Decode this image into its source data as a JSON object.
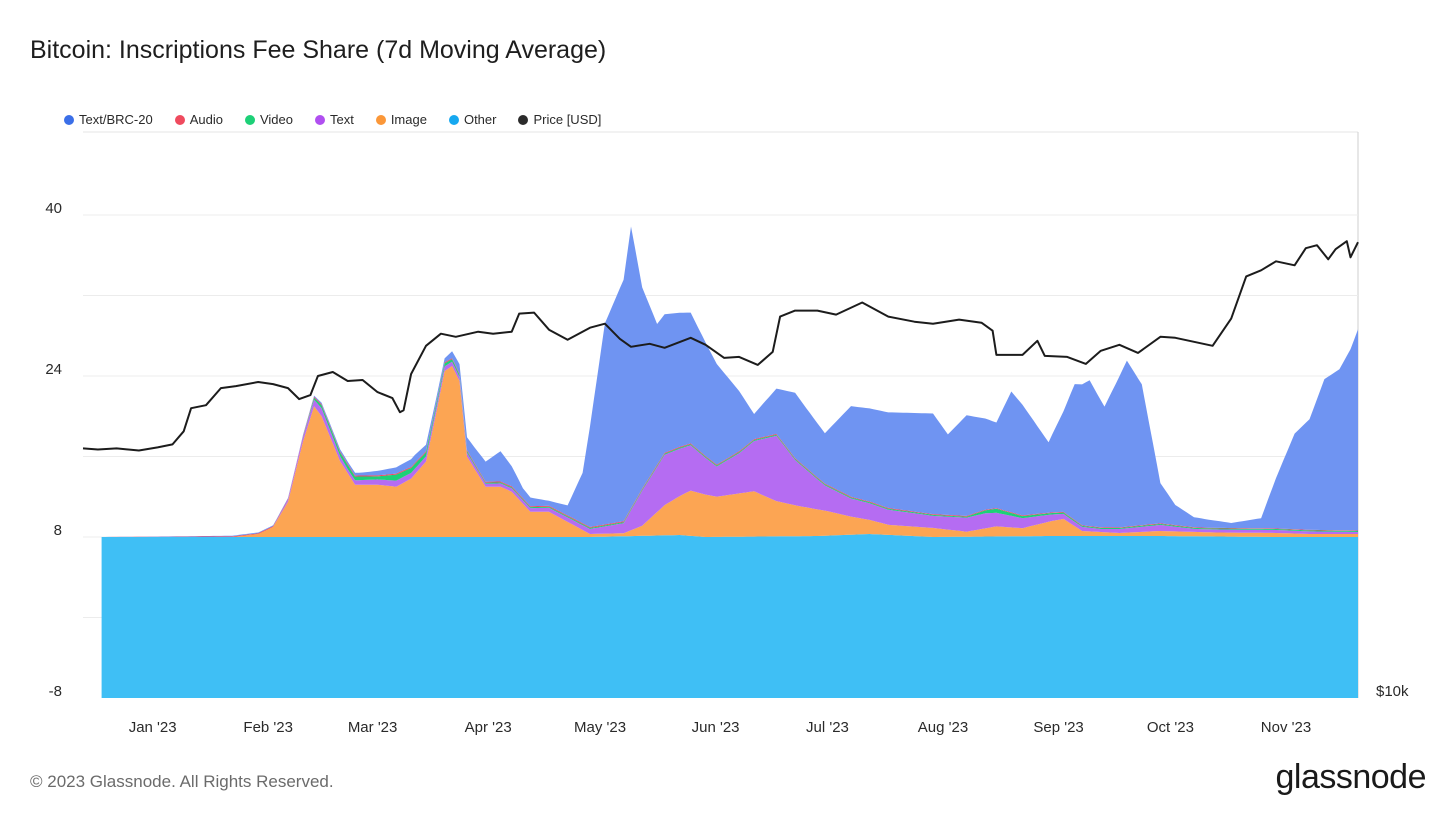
{
  "chart_data": {
    "type": "area",
    "title": "Bitcoin: Inscriptions Fee Share (7d Moving Average)",
    "y_ticks": [
      "40",
      "24",
      "8",
      "-8"
    ],
    "y_right_label": "$10k",
    "ylim": [
      -8,
      48
    ],
    "x_start": "2022-12-16",
    "x_end": "2023-11-23",
    "x_ticks": [
      {
        "label": "Jan '23",
        "date": "2023-01-01"
      },
      {
        "label": "Feb '23",
        "date": "2023-02-01"
      },
      {
        "label": "Mar '23",
        "date": "2023-03-01"
      },
      {
        "label": "Apr '23",
        "date": "2023-04-01"
      },
      {
        "label": "May '23",
        "date": "2023-05-01"
      },
      {
        "label": "Jun '23",
        "date": "2023-06-01"
      },
      {
        "label": "Jul '23",
        "date": "2023-07-01"
      },
      {
        "label": "Aug '23",
        "date": "2023-08-01"
      },
      {
        "label": "Sep '23",
        "date": "2023-09-01"
      },
      {
        "label": "Oct '23",
        "date": "2023-10-01"
      },
      {
        "label": "Nov '23",
        "date": "2023-11-01"
      }
    ],
    "stacked_series": [
      {
        "name": "Other",
        "color": "#3fbff5",
        "points": [
          [
            "2022-12-21",
            8.0
          ],
          [
            "2023-02-01",
            8.0
          ],
          [
            "2023-03-01",
            8.0
          ],
          [
            "2023-04-01",
            8.0
          ],
          [
            "2023-05-01",
            8.0
          ],
          [
            "2023-05-25",
            8.2
          ],
          [
            "2023-06-01",
            8.0
          ],
          [
            "2023-07-01",
            8.1
          ],
          [
            "2023-07-15",
            8.3
          ],
          [
            "2023-08-01",
            8.0
          ],
          [
            "2023-09-01",
            8.1
          ],
          [
            "2023-10-01",
            8.1
          ],
          [
            "2023-11-01",
            8.0
          ],
          [
            "2023-11-23",
            8.0
          ]
        ]
      },
      {
        "name": "Image",
        "color": "#fca553",
        "points": [
          [
            "2022-12-21",
            0
          ],
          [
            "2023-01-25",
            0
          ],
          [
            "2023-02-01",
            0.3
          ],
          [
            "2023-02-05",
            1.0
          ],
          [
            "2023-02-09",
            3.5
          ],
          [
            "2023-02-13",
            9.5
          ],
          [
            "2023-02-16",
            13.0
          ],
          [
            "2023-02-18",
            12.0
          ],
          [
            "2023-02-23",
            7.5
          ],
          [
            "2023-02-27",
            5.2
          ],
          [
            "2023-03-05",
            5.2
          ],
          [
            "2023-03-10",
            5.0
          ],
          [
            "2023-03-14",
            5.8
          ],
          [
            "2023-03-18",
            7.5
          ],
          [
            "2023-03-20",
            11.0
          ],
          [
            "2023-03-23",
            16.5
          ],
          [
            "2023-03-25",
            17.0
          ],
          [
            "2023-03-27",
            15.5
          ],
          [
            "2023-03-29",
            8.0
          ],
          [
            "2023-04-03",
            5.0
          ],
          [
            "2023-04-07",
            5.0
          ],
          [
            "2023-04-10",
            4.5
          ],
          [
            "2023-04-15",
            2.5
          ],
          [
            "2023-04-20",
            2.5
          ],
          [
            "2023-04-25",
            1.5
          ],
          [
            "2023-05-01",
            0.3
          ],
          [
            "2023-05-10",
            0.3
          ],
          [
            "2023-05-15",
            1.0
          ],
          [
            "2023-05-21",
            3.0
          ],
          [
            "2023-05-28",
            4.5
          ],
          [
            "2023-06-04",
            4.0
          ],
          [
            "2023-06-10",
            4.3
          ],
          [
            "2023-06-14",
            4.5
          ],
          [
            "2023-06-20",
            3.5
          ],
          [
            "2023-06-26",
            3.0
          ],
          [
            "2023-07-03",
            2.5
          ],
          [
            "2023-07-10",
            1.8
          ],
          [
            "2023-07-20",
            1.0
          ],
          [
            "2023-08-01",
            0.9
          ],
          [
            "2023-08-10",
            0.5
          ],
          [
            "2023-08-18",
            1.0
          ],
          [
            "2023-08-25",
            0.8
          ],
          [
            "2023-09-02",
            1.5
          ],
          [
            "2023-09-05",
            1.7
          ],
          [
            "2023-09-10",
            0.5
          ],
          [
            "2023-09-20",
            0.3
          ],
          [
            "2023-10-01",
            0.5
          ],
          [
            "2023-10-15",
            0.4
          ],
          [
            "2023-11-01",
            0.4
          ],
          [
            "2023-11-10",
            0.3
          ],
          [
            "2023-11-23",
            0.3
          ]
        ]
      },
      {
        "name": "Text",
        "color": "#b56cf2",
        "points": [
          [
            "2022-12-21",
            0
          ],
          [
            "2023-02-05",
            0
          ],
          [
            "2023-02-13",
            0.4
          ],
          [
            "2023-02-18",
            0.8
          ],
          [
            "2023-02-25",
            0.4
          ],
          [
            "2023-03-10",
            0.6
          ],
          [
            "2023-03-20",
            0.5
          ],
          [
            "2023-04-03",
            0.3
          ],
          [
            "2023-04-20",
            0.4
          ],
          [
            "2023-05-01",
            0.5
          ],
          [
            "2023-05-10",
            1.0
          ],
          [
            "2023-05-15",
            3.5
          ],
          [
            "2023-05-21",
            5.0
          ],
          [
            "2023-05-28",
            4.5
          ],
          [
            "2023-06-04",
            3.0
          ],
          [
            "2023-06-10",
            4.0
          ],
          [
            "2023-06-20",
            6.5
          ],
          [
            "2023-06-25",
            4.5
          ],
          [
            "2023-07-03",
            2.5
          ],
          [
            "2023-07-10",
            1.8
          ],
          [
            "2023-07-20",
            1.5
          ],
          [
            "2023-08-01",
            1.2
          ],
          [
            "2023-08-15",
            1.5
          ],
          [
            "2023-08-25",
            1.0
          ],
          [
            "2023-09-05",
            0.5
          ],
          [
            "2023-09-15",
            0.3
          ],
          [
            "2023-10-01",
            0.6
          ],
          [
            "2023-10-10",
            0.3
          ],
          [
            "2023-11-01",
            0.3
          ],
          [
            "2023-11-23",
            0.2
          ]
        ]
      },
      {
        "name": "Video",
        "color": "#1dd077",
        "points": [
          [
            "2022-12-21",
            0
          ],
          [
            "2023-02-12",
            0
          ],
          [
            "2023-02-18",
            0.3
          ],
          [
            "2023-02-25",
            0.4
          ],
          [
            "2023-03-05",
            0.3
          ],
          [
            "2023-03-10",
            0.6
          ],
          [
            "2023-03-18",
            0.4
          ],
          [
            "2023-04-01",
            0.1
          ],
          [
            "2023-08-10",
            0.1
          ],
          [
            "2023-08-18",
            0.4
          ],
          [
            "2023-08-25",
            0.2
          ],
          [
            "2023-09-10",
            0.1
          ],
          [
            "2023-11-23",
            0.1
          ]
        ]
      },
      {
        "name": "Audio",
        "color": "#ef4a5e",
        "points": [
          [
            "2022-12-21",
            0
          ],
          [
            "2023-02-15",
            0.1
          ],
          [
            "2023-03-01",
            0.1
          ],
          [
            "2023-03-20",
            0.1
          ],
          [
            "2023-11-23",
            0.05
          ]
        ]
      },
      {
        "name": "Text/BRC-20",
        "color": "#6f94f2",
        "points": [
          [
            "2022-12-21",
            0
          ],
          [
            "2023-02-15",
            0.1
          ],
          [
            "2023-03-01",
            0.3
          ],
          [
            "2023-03-15",
            0.8
          ],
          [
            "2023-03-23",
            0.4
          ],
          [
            "2023-04-03",
            2.0
          ],
          [
            "2023-04-07",
            3.0
          ],
          [
            "2023-04-13",
            1.0
          ],
          [
            "2023-04-20",
            0.5
          ],
          [
            "2023-04-25",
            1.0
          ],
          [
            "2023-04-29",
            5.0
          ],
          [
            "2023-05-01",
            10.0
          ],
          [
            "2023-05-05",
            20.0
          ],
          [
            "2023-05-10",
            24.0
          ],
          [
            "2023-05-12",
            28.0
          ],
          [
            "2023-05-15",
            20.0
          ],
          [
            "2023-05-19",
            14.0
          ],
          [
            "2023-05-28",
            13.0
          ],
          [
            "2023-06-04",
            10.0
          ],
          [
            "2023-06-10",
            6.0
          ],
          [
            "2023-06-14",
            2.5
          ],
          [
            "2023-06-20",
            4.5
          ],
          [
            "2023-06-25",
            6.5
          ],
          [
            "2023-07-03",
            5.0
          ],
          [
            "2023-07-10",
            9.0
          ],
          [
            "2023-07-20",
            9.5
          ],
          [
            "2023-08-01",
            10.0
          ],
          [
            "2023-08-05",
            8.0
          ],
          [
            "2023-08-10",
            10.0
          ],
          [
            "2023-08-18",
            8.5
          ],
          [
            "2023-08-22",
            12.0
          ],
          [
            "2023-08-25",
            11.0
          ],
          [
            "2023-09-01",
            7.0
          ],
          [
            "2023-09-05",
            10.0
          ],
          [
            "2023-09-08",
            13.5
          ],
          [
            "2023-09-12",
            14.5
          ],
          [
            "2023-09-16",
            12.0
          ],
          [
            "2023-09-22",
            16.5
          ],
          [
            "2023-09-26",
            14.0
          ],
          [
            "2023-10-01",
            4.0
          ],
          [
            "2023-10-05",
            2.0
          ],
          [
            "2023-10-10",
            1.0
          ],
          [
            "2023-10-20",
            0.5
          ],
          [
            "2023-10-28",
            1.0
          ],
          [
            "2023-11-01",
            5.0
          ],
          [
            "2023-11-06",
            9.5
          ],
          [
            "2023-11-10",
            11.0
          ],
          [
            "2023-11-14",
            15.0
          ],
          [
            "2023-11-18",
            16.0
          ],
          [
            "2023-11-21",
            18.0
          ],
          [
            "2023-11-23",
            20.0
          ]
        ]
      }
    ],
    "price_series": {
      "name": "Price [USD]",
      "color": "#1c1c1c",
      "points": [
        [
          "2022-12-16",
          16.8
        ],
        [
          "2022-12-20",
          16.7
        ],
        [
          "2022-12-25",
          16.8
        ],
        [
          "2022-12-31",
          16.6
        ],
        [
          "2023-01-05",
          16.9
        ],
        [
          "2023-01-09",
          17.2
        ],
        [
          "2023-01-12",
          18.5
        ],
        [
          "2023-01-14",
          20.8
        ],
        [
          "2023-01-18",
          21.1
        ],
        [
          "2023-01-22",
          22.8
        ],
        [
          "2023-01-26",
          23.0
        ],
        [
          "2023-02-01",
          23.4
        ],
        [
          "2023-02-05",
          23.2
        ],
        [
          "2023-02-09",
          22.8
        ],
        [
          "2023-02-12",
          21.7
        ],
        [
          "2023-02-15",
          22.1
        ],
        [
          "2023-02-17",
          24.0
        ],
        [
          "2023-02-21",
          24.4
        ],
        [
          "2023-02-25",
          23.5
        ],
        [
          "2023-03-01",
          23.6
        ],
        [
          "2023-03-05",
          22.4
        ],
        [
          "2023-03-09",
          21.8
        ],
        [
          "2023-03-11",
          20.4
        ],
        [
          "2023-03-12",
          20.6
        ],
        [
          "2023-03-14",
          24.2
        ],
        [
          "2023-03-18",
          27.0
        ],
        [
          "2023-03-22",
          28.2
        ],
        [
          "2023-03-26",
          27.9
        ],
        [
          "2023-04-01",
          28.4
        ],
        [
          "2023-04-05",
          28.2
        ],
        [
          "2023-04-10",
          28.4
        ],
        [
          "2023-04-12",
          30.2
        ],
        [
          "2023-04-16",
          30.3
        ],
        [
          "2023-04-20",
          28.6
        ],
        [
          "2023-04-25",
          27.6
        ],
        [
          "2023-05-01",
          28.8
        ],
        [
          "2023-05-05",
          29.2
        ],
        [
          "2023-05-09",
          27.7
        ],
        [
          "2023-05-12",
          26.9
        ],
        [
          "2023-05-17",
          27.2
        ],
        [
          "2023-05-21",
          26.8
        ],
        [
          "2023-05-28",
          27.8
        ],
        [
          "2023-06-01",
          27.1
        ],
        [
          "2023-06-06",
          25.8
        ],
        [
          "2023-06-10",
          25.9
        ],
        [
          "2023-06-15",
          25.1
        ],
        [
          "2023-06-19",
          26.4
        ],
        [
          "2023-06-21",
          29.9
        ],
        [
          "2023-06-25",
          30.5
        ],
        [
          "2023-07-01",
          30.5
        ],
        [
          "2023-07-06",
          30.1
        ],
        [
          "2023-07-13",
          31.3
        ],
        [
          "2023-07-20",
          29.9
        ],
        [
          "2023-07-27",
          29.4
        ],
        [
          "2023-08-01",
          29.2
        ],
        [
          "2023-08-08",
          29.6
        ],
        [
          "2023-08-14",
          29.3
        ],
        [
          "2023-08-17",
          28.5
        ],
        [
          "2023-08-18",
          26.1
        ],
        [
          "2023-08-25",
          26.1
        ],
        [
          "2023-08-29",
          27.5
        ],
        [
          "2023-08-31",
          26.0
        ],
        [
          "2023-09-06",
          25.9
        ],
        [
          "2023-09-11",
          25.2
        ],
        [
          "2023-09-15",
          26.5
        ],
        [
          "2023-09-20",
          27.1
        ],
        [
          "2023-09-25",
          26.3
        ],
        [
          "2023-10-01",
          27.9
        ],
        [
          "2023-10-05",
          27.8
        ],
        [
          "2023-10-10",
          27.4
        ],
        [
          "2023-10-15",
          27.0
        ],
        [
          "2023-10-20",
          29.7
        ],
        [
          "2023-10-24",
          33.9
        ],
        [
          "2023-10-28",
          34.5
        ],
        [
          "2023-11-01",
          35.4
        ],
        [
          "2023-11-06",
          35.0
        ],
        [
          "2023-11-09",
          36.7
        ],
        [
          "2023-11-12",
          37.0
        ],
        [
          "2023-11-15",
          35.6
        ],
        [
          "2023-11-17",
          36.6
        ],
        [
          "2023-11-20",
          37.4
        ],
        [
          "2023-11-21",
          35.8
        ],
        [
          "2023-11-23",
          37.3
        ]
      ]
    }
  },
  "legend": [
    {
      "label": "Text/BRC-20",
      "color": "#3b6fe8"
    },
    {
      "label": "Audio",
      "color": "#ef4a5e"
    },
    {
      "label": "Video",
      "color": "#1dd077"
    },
    {
      "label": "Text",
      "color": "#b04ff0"
    },
    {
      "label": "Image",
      "color": "#fb9738"
    },
    {
      "label": "Other",
      "color": "#16a8f0"
    },
    {
      "label": "Price [USD]",
      "color": "#2b2b2b"
    }
  ],
  "footer": {
    "copyright": "© 2023 Glassnode. All Rights Reserved.",
    "brand": "glassnode"
  }
}
